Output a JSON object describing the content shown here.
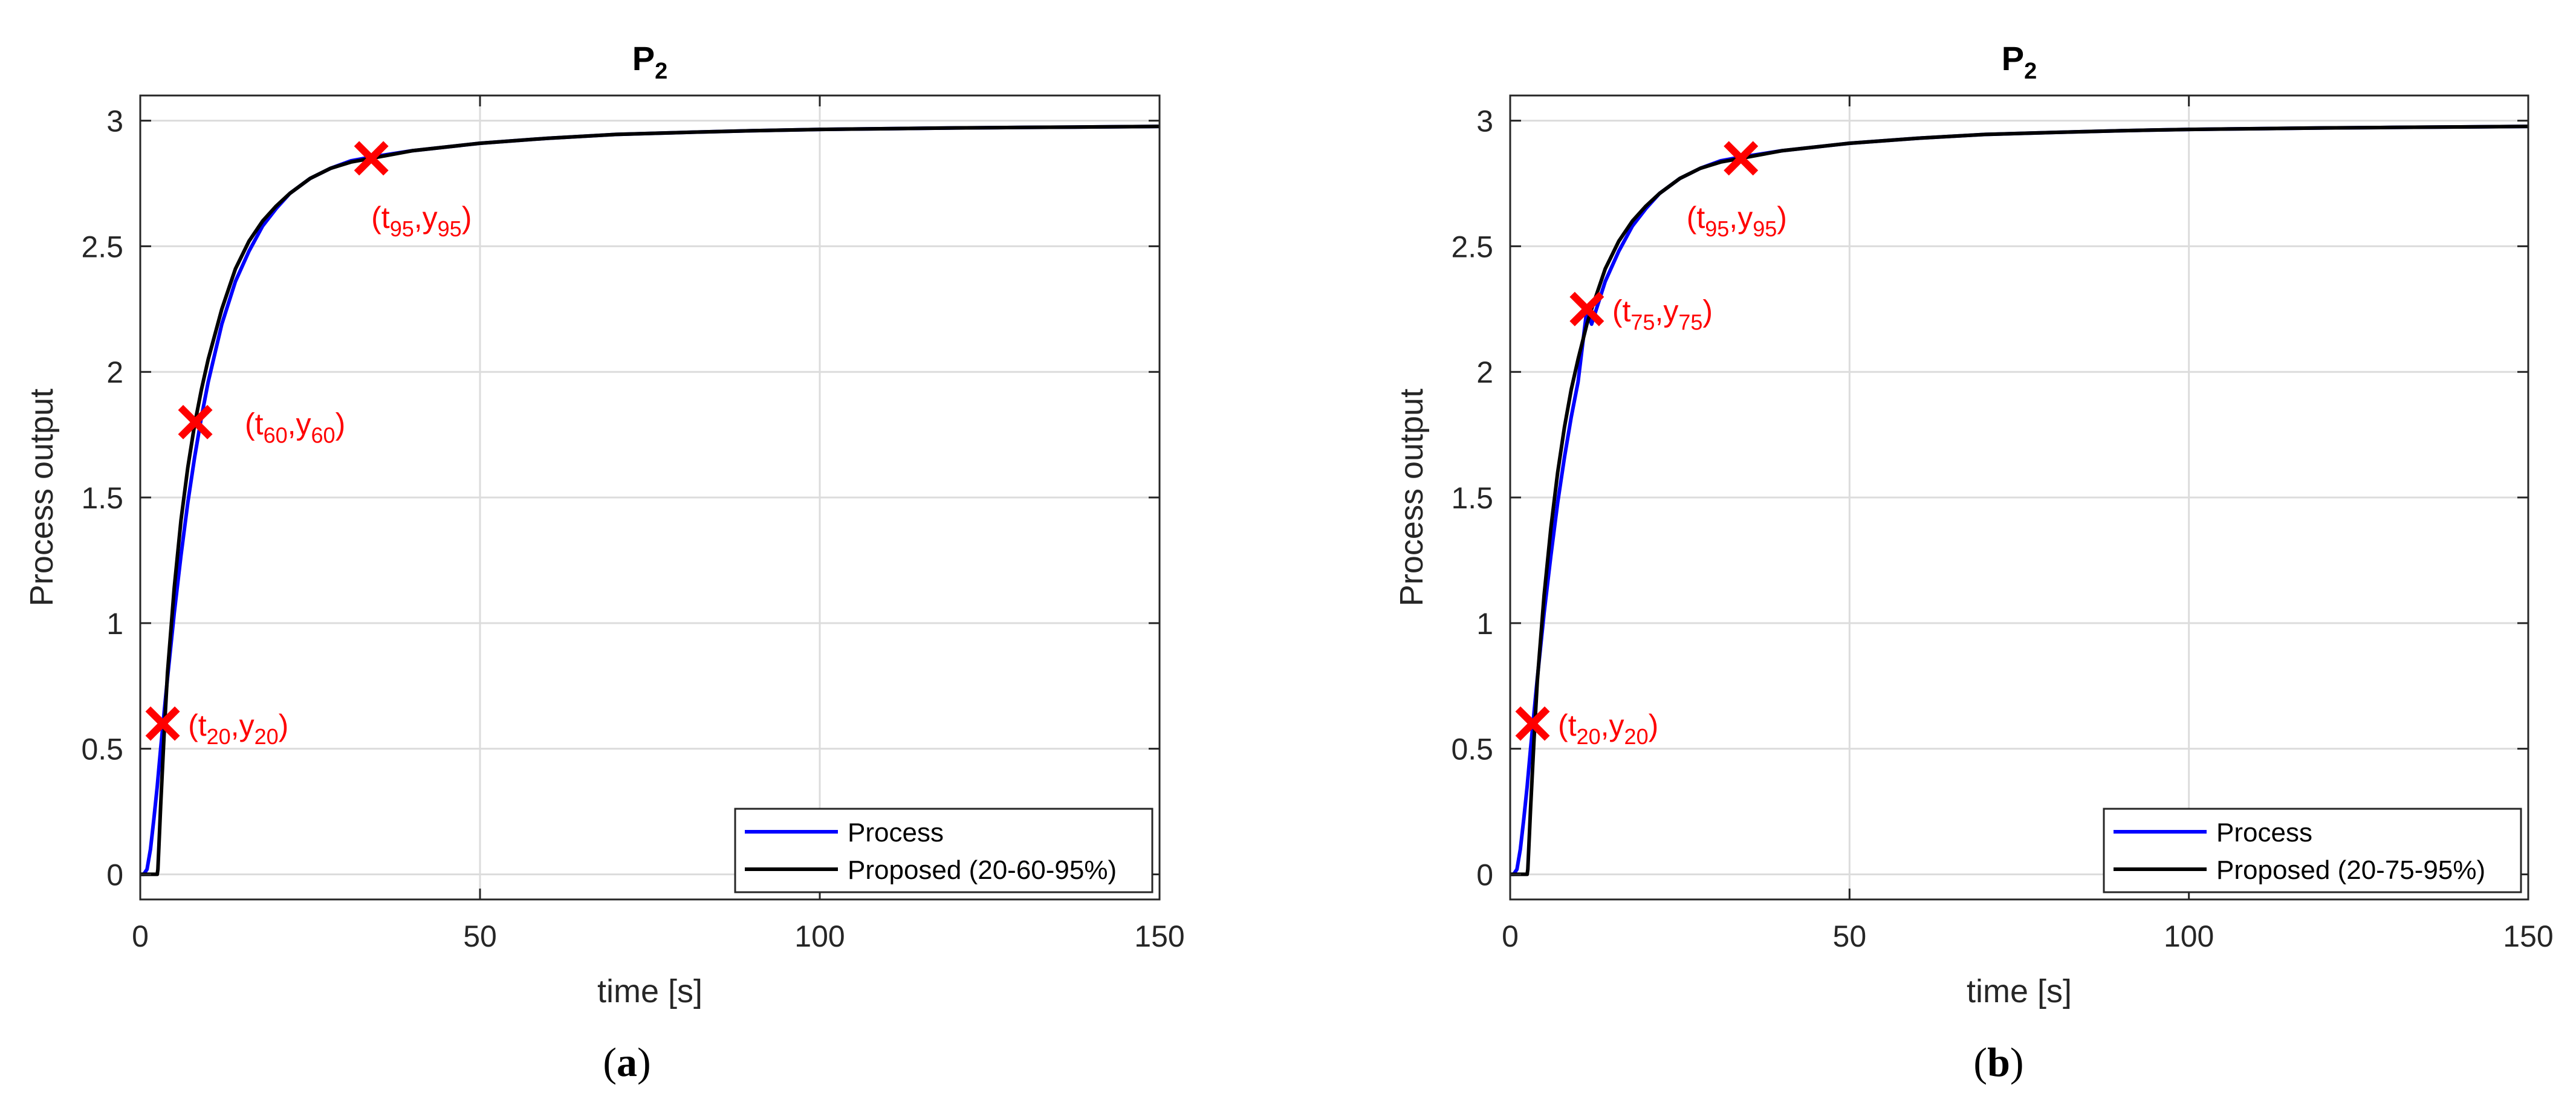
{
  "colors": {
    "process": "#0000ff",
    "proposed": "#000000",
    "marker": "#ff0000",
    "grid": "#dcdcdc",
    "axes": "#262626"
  },
  "captions": [
    {
      "open": "(",
      "letter": "a",
      "close": ")"
    },
    {
      "open": "(",
      "letter": "b",
      "close": ")"
    }
  ],
  "chart_data": [
    {
      "type": "line",
      "title": "P",
      "title_subscript": "2",
      "xlabel": "time [s]",
      "ylabel": "Process output",
      "xlim": [
        0,
        150
      ],
      "ylim": [
        -0.1,
        3.1
      ],
      "xticks": [
        0,
        50,
        100,
        150
      ],
      "yticks": [
        0,
        0.5,
        1,
        1.5,
        2,
        2.5,
        3
      ],
      "ytick_labels": [
        "0",
        "0.5",
        "1",
        "1.5",
        "2",
        "2.5",
        "3"
      ],
      "grid": true,
      "legend_position": "bottom-right",
      "series": [
        {
          "name": "Process",
          "color": "#0000ff",
          "x": [
            0,
            0.5,
            1,
            1.5,
            2,
            2.5,
            3,
            3.5,
            4,
            5,
            6,
            7,
            8,
            9,
            10,
            12,
            14,
            16,
            18,
            20,
            22,
            25,
            28,
            31,
            34,
            40,
            50,
            60,
            70,
            80,
            90,
            100,
            110,
            120,
            130,
            140,
            150
          ],
          "y": [
            0,
            0,
            0.02,
            0.1,
            0.22,
            0.35,
            0.5,
            0.64,
            0.78,
            1.04,
            1.27,
            1.48,
            1.66,
            1.82,
            1.96,
            2.19,
            2.36,
            2.48,
            2.58,
            2.65,
            2.71,
            2.77,
            2.81,
            2.84,
            2.855,
            2.88,
            2.91,
            2.93,
            2.945,
            2.953,
            2.96,
            2.965,
            2.968,
            2.971,
            2.973,
            2.975,
            2.977
          ]
        },
        {
          "name": "Proposed (20-60-95%)",
          "color": "#000000",
          "x": [
            0,
            2.5,
            2.6,
            3,
            3.5,
            4,
            5,
            6,
            7,
            8,
            9,
            10,
            12,
            14,
            16,
            18,
            20,
            22,
            25,
            28,
            31,
            34,
            40,
            50,
            60,
            70,
            80,
            90,
            100,
            110,
            120,
            130,
            140,
            150
          ],
          "y": [
            0,
            0,
            0.02,
            0.27,
            0.55,
            0.8,
            1.14,
            1.41,
            1.62,
            1.79,
            1.93,
            2.05,
            2.25,
            2.41,
            2.52,
            2.6,
            2.66,
            2.71,
            2.77,
            2.81,
            2.835,
            2.85,
            2.88,
            2.91,
            2.93,
            2.945,
            2.953,
            2.96,
            2.965,
            2.968,
            2.971,
            2.973,
            2.975,
            2.977
          ]
        }
      ],
      "points": [
        {
          "x": 3.3,
          "y": 0.6,
          "label_sub1": "20",
          "label_sub2": "20"
        },
        {
          "x": 8.1,
          "y": 1.8,
          "label_sub1": "60",
          "label_sub2": "60"
        },
        {
          "x": 34,
          "y": 2.85,
          "label_sub1": "95",
          "label_sub2": "95"
        }
      ]
    },
    {
      "type": "line",
      "title": "P",
      "title_subscript": "2",
      "xlabel": "time [s]",
      "ylabel": "Process output",
      "xlim": [
        0,
        150
      ],
      "ylim": [
        -0.1,
        3.1
      ],
      "xticks": [
        0,
        50,
        100,
        150
      ],
      "yticks": [
        0,
        0.5,
        1,
        1.5,
        2,
        2.5,
        3
      ],
      "ytick_labels": [
        "0",
        "0.5",
        "1",
        "1.5",
        "2",
        "2.5",
        "3"
      ],
      "grid": true,
      "legend_position": "bottom-right",
      "series": [
        {
          "name": "Process",
          "color": "#0000ff",
          "x": [
            0,
            0.5,
            1,
            1.5,
            2,
            2.5,
            3,
            3.5,
            4,
            5,
            6,
            7,
            8,
            9,
            10,
            11.3,
            12,
            14,
            16,
            18,
            20,
            22,
            25,
            28,
            31,
            34,
            40,
            50,
            60,
            70,
            80,
            90,
            100,
            110,
            120,
            130,
            140,
            150
          ],
          "y": [
            0,
            0,
            0.02,
            0.1,
            0.22,
            0.35,
            0.5,
            0.64,
            0.78,
            1.04,
            1.27,
            1.48,
            1.66,
            1.82,
            1.96,
            2.25,
            2.19,
            2.36,
            2.48,
            2.58,
            2.65,
            2.71,
            2.77,
            2.81,
            2.84,
            2.855,
            2.88,
            2.91,
            2.93,
            2.945,
            2.953,
            2.96,
            2.965,
            2.968,
            2.971,
            2.973,
            2.975,
            2.977
          ]
        },
        {
          "name": "Proposed (20-75-95%)",
          "color": "#000000",
          "x": [
            0,
            2.5,
            2.6,
            3,
            3.5,
            4,
            5,
            6,
            7,
            8,
            9,
            10,
            11.3,
            12,
            14,
            16,
            18,
            20,
            22,
            25,
            28,
            31,
            34,
            40,
            50,
            60,
            70,
            80,
            90,
            100,
            110,
            120,
            130,
            140,
            150
          ],
          "y": [
            0,
            0,
            0.02,
            0.26,
            0.53,
            0.77,
            1.11,
            1.38,
            1.6,
            1.78,
            1.93,
            2.05,
            2.19,
            2.25,
            2.41,
            2.52,
            2.6,
            2.66,
            2.71,
            2.77,
            2.81,
            2.835,
            2.85,
            2.88,
            2.91,
            2.93,
            2.945,
            2.953,
            2.96,
            2.965,
            2.968,
            2.971,
            2.973,
            2.975,
            2.977
          ]
        }
      ],
      "points": [
        {
          "x": 3.3,
          "y": 0.6,
          "label_sub1": "20",
          "label_sub2": "20"
        },
        {
          "x": 11.3,
          "y": 2.25,
          "label_sub1": "75",
          "label_sub2": "75"
        },
        {
          "x": 34,
          "y": 2.85,
          "label_sub1": "95",
          "label_sub2": "95"
        }
      ]
    }
  ]
}
